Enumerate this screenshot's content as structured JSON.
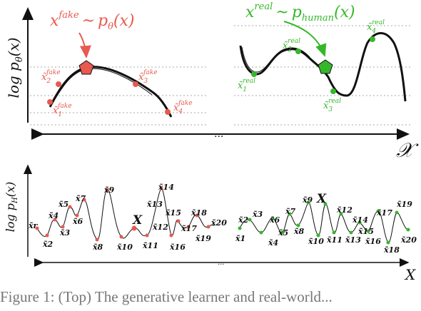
{
  "top_panel": {
    "y_label": "log p",
    "y_label_sub": "θ",
    "y_label_arg": "(x)",
    "x_axis_label": "𝒳",
    "ellipsis": "...",
    "fake_formula": {
      "x": "x",
      "sup": "fake",
      "tilde": "~",
      "p": "p",
      "sub": "θ",
      "arg": "(x)",
      "color": "#e8594f"
    },
    "real_formula": {
      "x": "x",
      "sup": "real",
      "tilde": "~",
      "p": "p",
      "sub": "human",
      "arg": "(x)",
      "color": "#35b72a"
    },
    "fake_points": [
      {
        "base": "x̃",
        "sub": "1",
        "sup": "fake"
      },
      {
        "base": "x̃",
        "sub": "2",
        "sup": "fake"
      },
      {
        "base": "x̃",
        "sub": "3",
        "sup": "fake"
      },
      {
        "base": "x̃",
        "sub": "4",
        "sup": "fake"
      }
    ],
    "real_points": [
      {
        "base": "x̃",
        "sub": "1",
        "sup": "real"
      },
      {
        "base": "x̃",
        "sub": "2",
        "sup": "real"
      },
      {
        "base": "x̃",
        "sub": "3",
        "sup": "real"
      },
      {
        "base": "x̃",
        "sub": "4",
        "sup": "real"
      }
    ]
  },
  "bottom_panel": {
    "y_label": "log p",
    "y_label_sub": "H",
    "y_label_arg": "(x)",
    "x_axis_label": "X",
    "ellipsis": "...",
    "marker_label": "X",
    "left_samples": [
      "x̃r",
      "x̃2",
      "x̃4",
      "x̃5",
      "x̃3",
      "x̃7",
      "x̃6",
      "x̃9",
      "x̃8",
      "x̃10",
      "x̃13",
      "x̃11",
      "x̃14",
      "x̃12",
      "x̃15",
      "x̃16",
      "x̃17",
      "x̃18",
      "x̃19",
      "x̃20"
    ],
    "right_samples": [
      "x̃1",
      "x̃2",
      "x̃3",
      "x̃4",
      "x̃5",
      "x̃7",
      "x̃6",
      "x̃8",
      "x̃9",
      "x̃10",
      "x̃11",
      "x̃12",
      "x̃14",
      "x̃13",
      "x̃15",
      "x̃16",
      "x̃17",
      "x̃18",
      "x̃19",
      "x̃20"
    ]
  },
  "caption": "Figure 1: (Top) The generative learner and real-world..."
}
